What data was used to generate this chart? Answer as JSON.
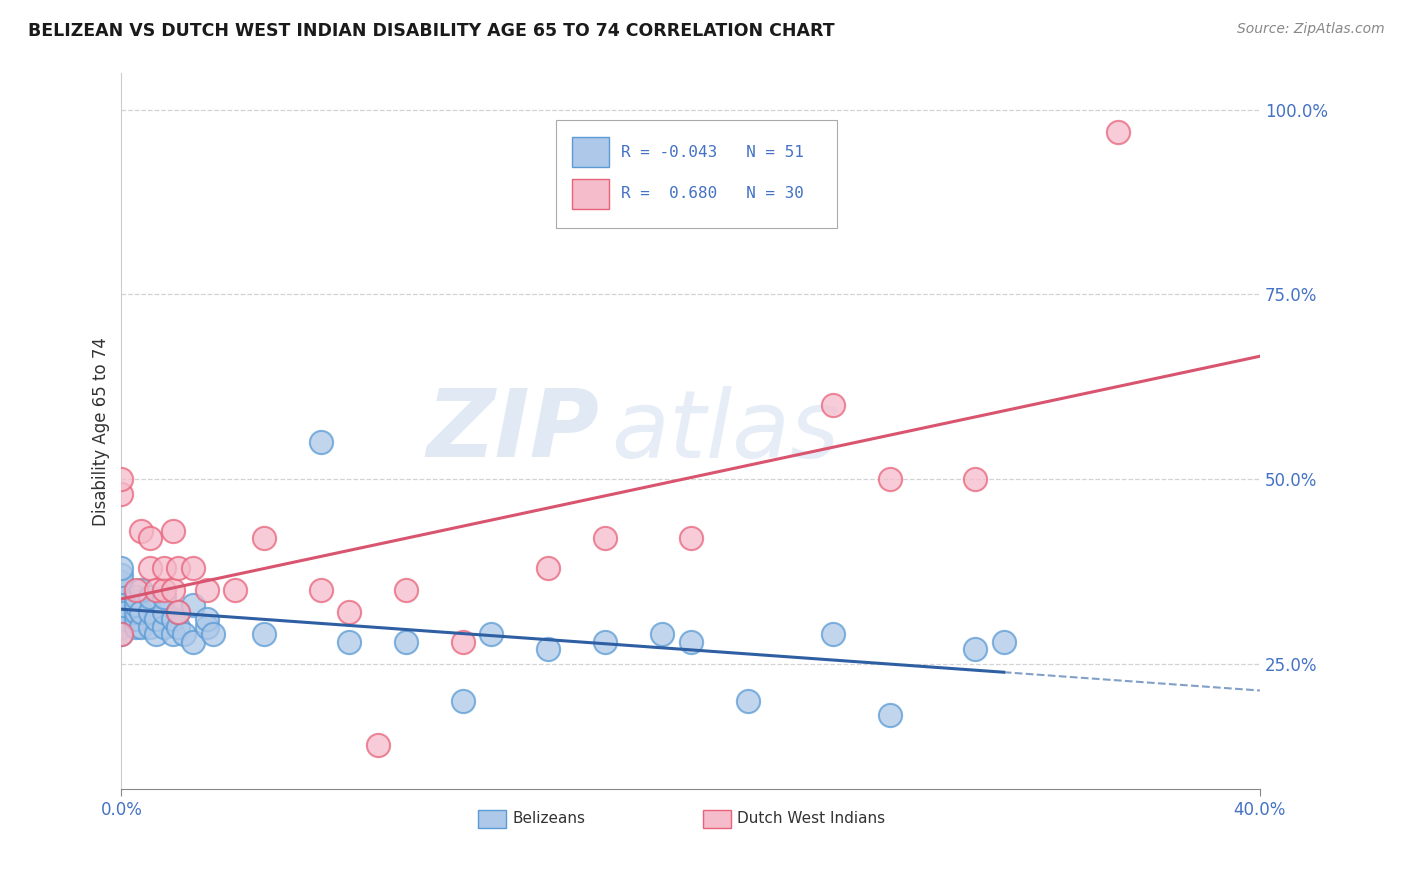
{
  "title": "BELIZEAN VS DUTCH WEST INDIAN DISABILITY AGE 65 TO 74 CORRELATION CHART",
  "source": "Source: ZipAtlas.com",
  "ylabel": "Disability Age 65 to 74",
  "xmin": 0.0,
  "xmax": 0.4,
  "ymin": 0.08,
  "ymax": 1.05,
  "y_ticks": [
    0.25,
    0.5,
    0.75,
    1.0
  ],
  "y_tick_labels": [
    "25.0%",
    "50.0%",
    "75.0%",
    "100.0%"
  ],
  "belizean_color": "#adc8e8",
  "dutch_color": "#f5bccb",
  "belizean_edge": "#5b9bd5",
  "dutch_edge": "#e8637a",
  "trend_belizean_color": "#2e5fa3",
  "trend_dutch_color": "#d9546e",
  "legend_R_belizean": "-0.043",
  "legend_N_belizean": "51",
  "legend_R_dutch": "0.680",
  "legend_N_dutch": "30",
  "watermark_zip": "ZIP",
  "watermark_atlas": "atlas",
  "belizean_x": [
    0.0,
    0.0,
    0.0,
    0.0,
    0.0,
    0.0,
    0.0,
    0.0,
    0.0,
    0.0,
    0.005,
    0.005,
    0.005,
    0.005,
    0.005,
    0.007,
    0.007,
    0.007,
    0.01,
    0.01,
    0.01,
    0.012,
    0.012,
    0.015,
    0.015,
    0.015,
    0.018,
    0.018,
    0.02,
    0.02,
    0.022,
    0.025,
    0.025,
    0.03,
    0.03,
    0.032,
    0.05,
    0.07,
    0.08,
    0.1,
    0.12,
    0.13,
    0.15,
    0.17,
    0.19,
    0.2,
    0.22,
    0.25,
    0.27,
    0.3,
    0.31
  ],
  "belizean_y": [
    0.3,
    0.31,
    0.32,
    0.33,
    0.34,
    0.35,
    0.36,
    0.37,
    0.38,
    0.29,
    0.3,
    0.31,
    0.32,
    0.33,
    0.34,
    0.3,
    0.32,
    0.35,
    0.3,
    0.32,
    0.34,
    0.29,
    0.31,
    0.3,
    0.32,
    0.34,
    0.29,
    0.31,
    0.3,
    0.32,
    0.29,
    0.28,
    0.33,
    0.3,
    0.31,
    0.29,
    0.29,
    0.55,
    0.28,
    0.28,
    0.2,
    0.29,
    0.27,
    0.28,
    0.29,
    0.28,
    0.2,
    0.29,
    0.18,
    0.27,
    0.28
  ],
  "dutch_x": [
    0.0,
    0.0,
    0.0,
    0.005,
    0.007,
    0.01,
    0.01,
    0.012,
    0.015,
    0.015,
    0.018,
    0.018,
    0.02,
    0.02,
    0.025,
    0.03,
    0.04,
    0.05,
    0.07,
    0.08,
    0.09,
    0.1,
    0.12,
    0.15,
    0.17,
    0.2,
    0.25,
    0.27,
    0.3,
    0.35
  ],
  "dutch_y": [
    0.29,
    0.48,
    0.5,
    0.35,
    0.43,
    0.38,
    0.42,
    0.35,
    0.35,
    0.38,
    0.35,
    0.43,
    0.32,
    0.38,
    0.38,
    0.35,
    0.35,
    0.42,
    0.35,
    0.32,
    0.14,
    0.35,
    0.28,
    0.38,
    0.42,
    0.42,
    0.6,
    0.5,
    0.5,
    0.97
  ]
}
